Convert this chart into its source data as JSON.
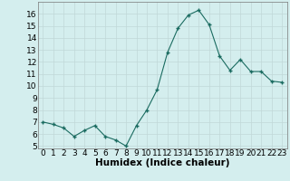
{
  "x": [
    0,
    1,
    2,
    3,
    4,
    5,
    6,
    7,
    8,
    9,
    10,
    11,
    12,
    13,
    14,
    15,
    16,
    17,
    18,
    19,
    20,
    21,
    22,
    23
  ],
  "y": [
    7.0,
    6.8,
    6.5,
    5.8,
    6.3,
    6.7,
    5.8,
    5.5,
    5.0,
    6.7,
    8.0,
    9.7,
    12.8,
    14.8,
    15.9,
    16.3,
    15.1,
    12.5,
    11.3,
    12.2,
    11.2,
    11.2,
    10.4,
    10.3
  ],
  "xlabel": "Humidex (Indice chaleur)",
  "ylim": [
    4.8,
    17.0
  ],
  "xlim": [
    -0.5,
    23.5
  ],
  "yticks": [
    5,
    6,
    7,
    8,
    9,
    10,
    11,
    12,
    13,
    14,
    15,
    16
  ],
  "xticks": [
    0,
    1,
    2,
    3,
    4,
    5,
    6,
    7,
    8,
    9,
    10,
    11,
    12,
    13,
    14,
    15,
    16,
    17,
    18,
    19,
    20,
    21,
    22,
    23
  ],
  "line_color": "#1a6b60",
  "marker_color": "#1a6b60",
  "bg_color": "#d4eeee",
  "grid_color": "#c0d8d8",
  "axis_label_fontsize": 7.5,
  "tick_fontsize": 6.5
}
